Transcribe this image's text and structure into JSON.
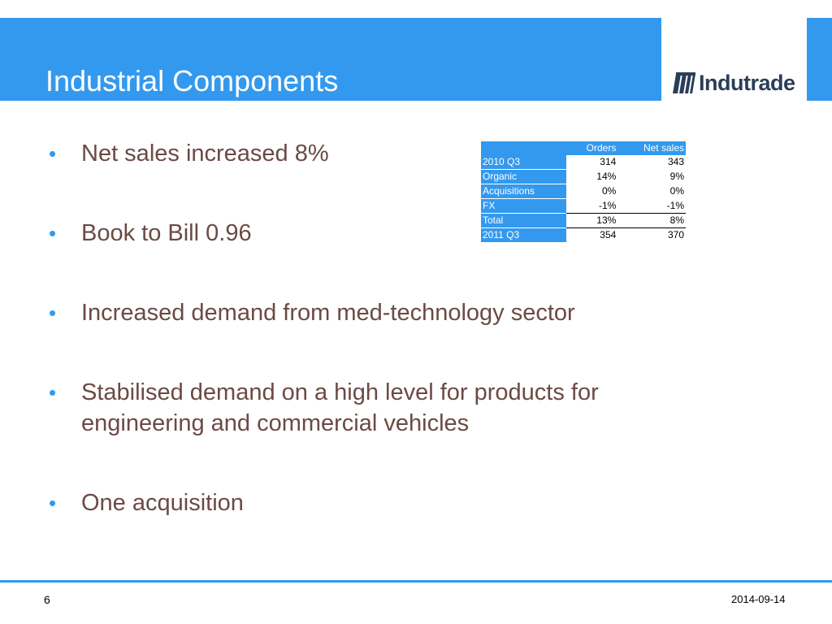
{
  "slide": {
    "title": "Industrial Components",
    "logo_text": "Indutrade",
    "logo_icon": "indutrade-logo-icon",
    "accent_color": "#3399ee",
    "text_color": "#6b4a44"
  },
  "bullets": [
    "Net sales increased 8%",
    "Book to Bill 0.96",
    "Increased demand from med-technology sector",
    "Stabilised demand on a high level for products for engineering and commercial vehicles",
    "One acquisition"
  ],
  "table": {
    "columns": [
      "",
      "Orders",
      "Net sales"
    ],
    "rows": [
      {
        "label": "2010 Q3",
        "orders": "314",
        "net_sales": "343"
      },
      {
        "label": "Organic",
        "orders": "14%",
        "net_sales": "9%"
      },
      {
        "label": "Acquisitions",
        "orders": "0%",
        "net_sales": "0%"
      },
      {
        "label": "FX",
        "orders": "-1%",
        "net_sales": "-1%"
      },
      {
        "label": "Total",
        "orders": "13%",
        "net_sales": "8%"
      },
      {
        "label": "2011 Q3",
        "orders": "354",
        "net_sales": "370"
      }
    ]
  },
  "footer": {
    "page_number": "6",
    "date": "2014-09-14"
  }
}
